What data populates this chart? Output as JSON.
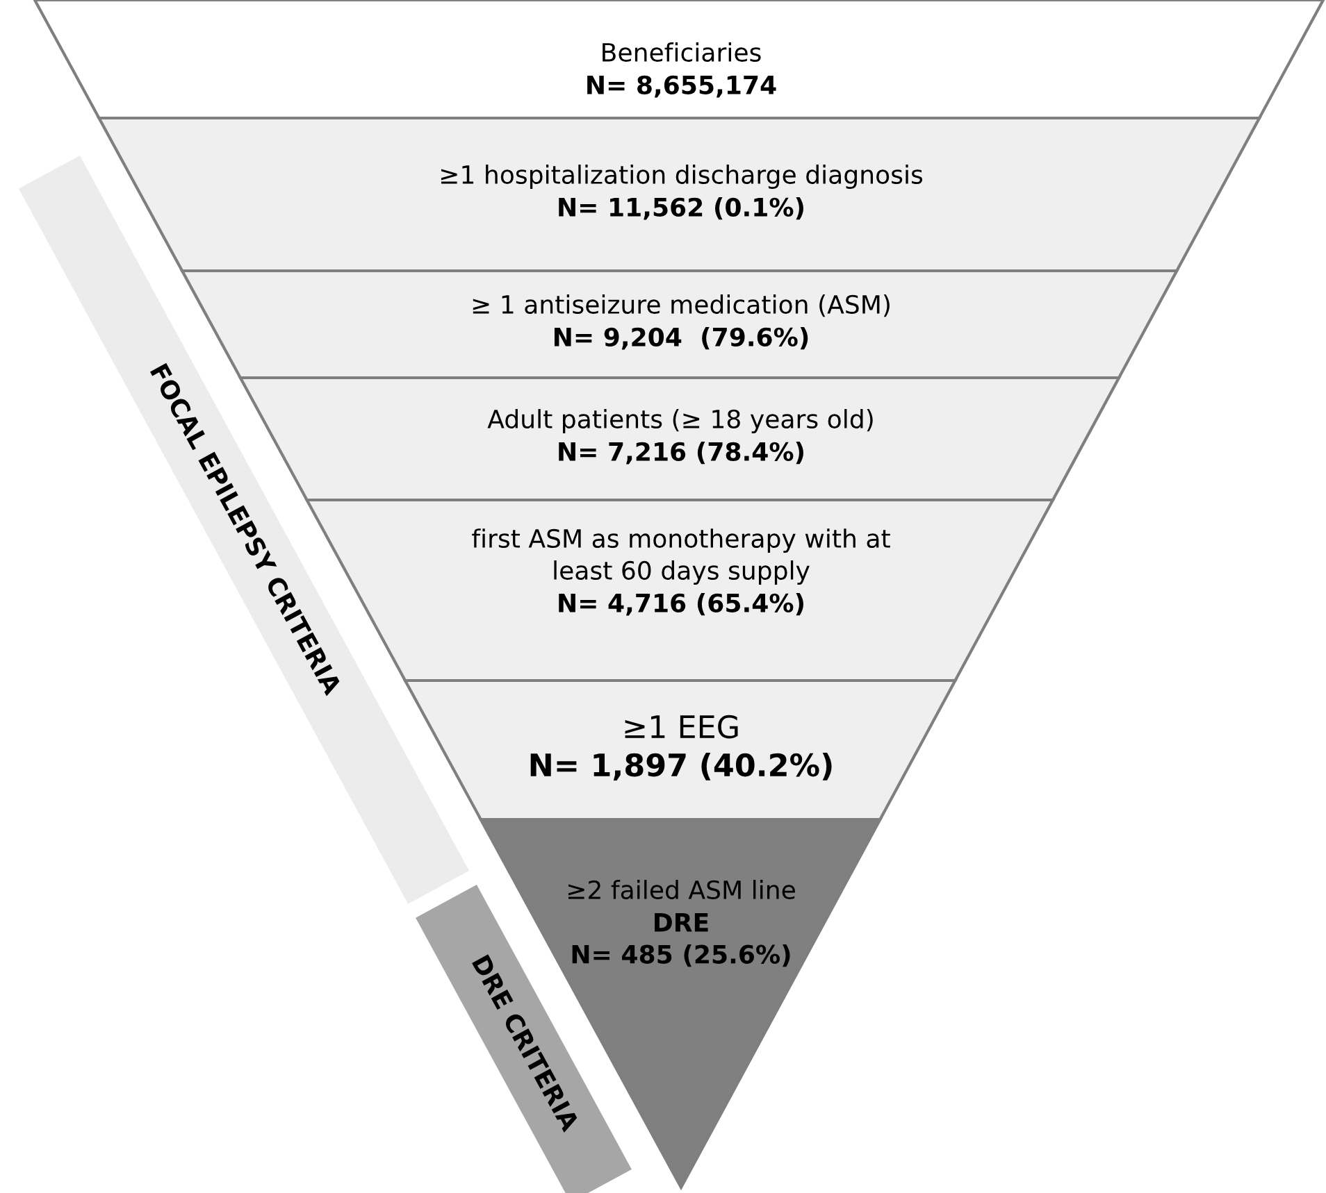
{
  "chart_data": {
    "type": "other",
    "categories": [
      "Beneficiaries",
      "≥1 hospitalization discharge diagnosis",
      "≥ 1 antiseizure medication (ASM)",
      "Adult patients (≥ 18 years old)",
      "first ASM as monotherapy with at\nleast 60 days supply",
      "≥1 EEG",
      "≥2 failed ASM line"
    ],
    "values": [
      8655174,
      11562,
      9204,
      7216,
      4716,
      1897,
      485
    ],
    "value_labels": [
      "N= 8,655,174",
      "N= 11,562 (0.1%)",
      "N= 9,204  (79.6%)",
      "N= 7,216 (78.4%)",
      "N= 4,716 (65.4%)",
      "N= 1,897 (40.2%)",
      "DRE\nN= 485 (25.6%)"
    ],
    "colors": [
      "#ffffff",
      "#efefef",
      "#efefef",
      "#efefef",
      "#efefef",
      "#efefef",
      "#808080"
    ],
    "annotations": [
      "FOCAL EPILEPSY CRITERIA",
      "DRE CRITERIA"
    ]
  }
}
